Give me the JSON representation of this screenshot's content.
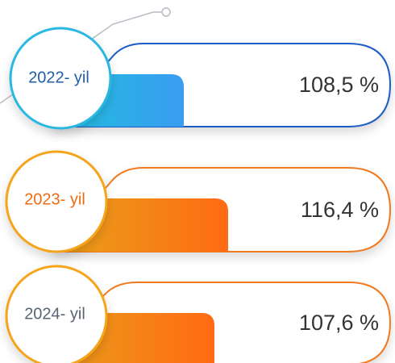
{
  "items": [
    {
      "year": "2022- yil",
      "value": "108,5 %"
    },
    {
      "year": "2023- yil",
      "value": "116,4 %"
    },
    {
      "year": "2024- yil",
      "value": "107,6 %"
    }
  ]
}
